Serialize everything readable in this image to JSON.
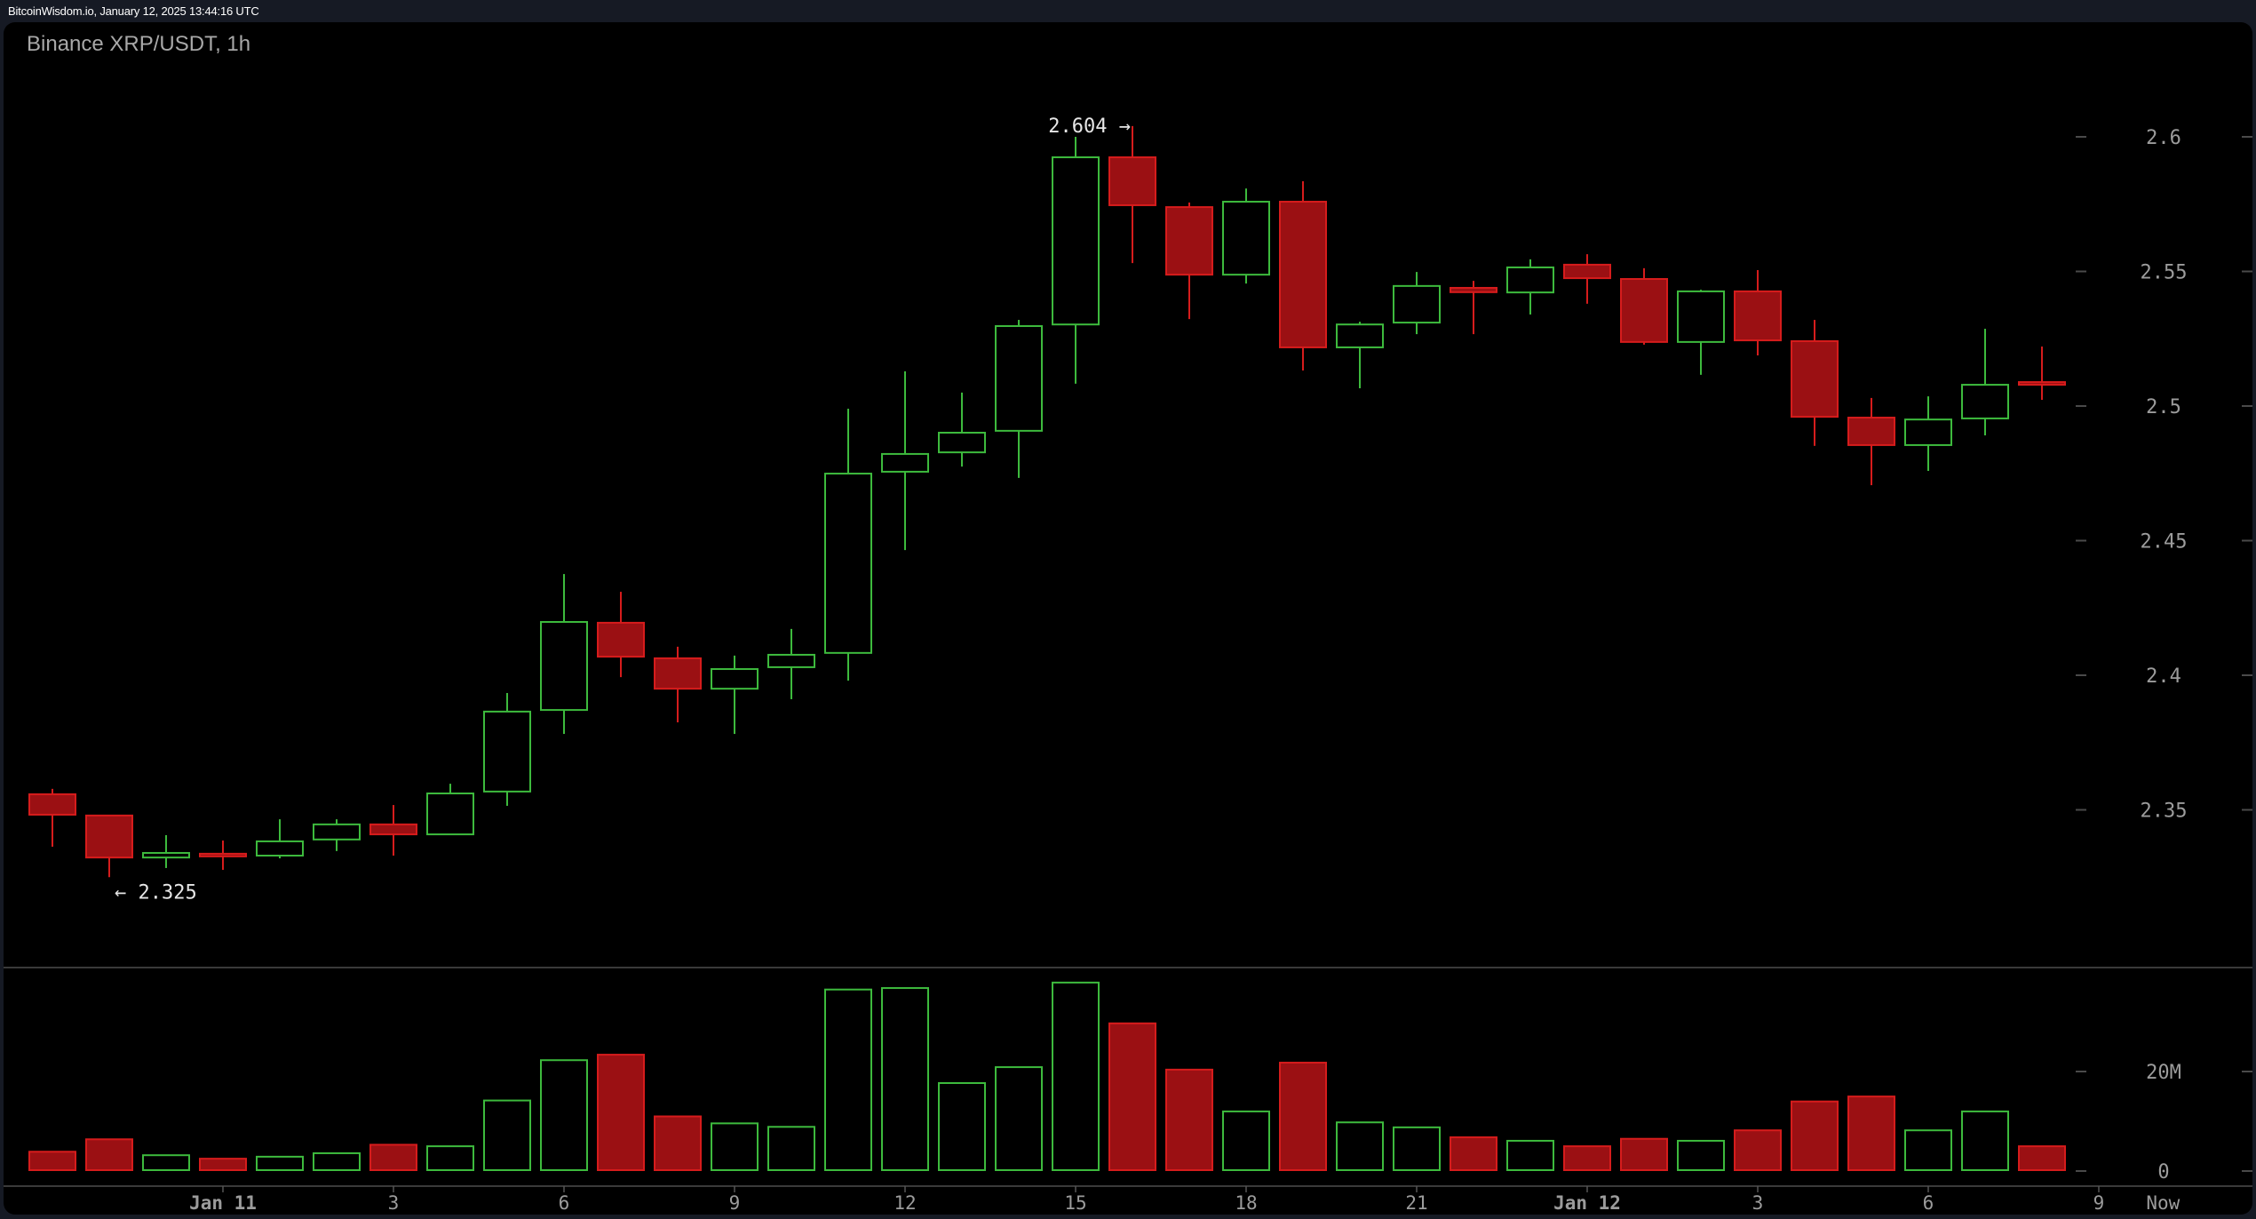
{
  "header": {
    "timestamp": "BitcoinWisdom.io, January 12, 2025 13:44:16 UTC"
  },
  "chart": {
    "title": "Binance XRP/USDT, 1h",
    "colors": {
      "background": "#000000",
      "page_background": "#161a24",
      "up": "#3dba3d",
      "down_fill": "#9b1013",
      "down_border": "#d61c1c",
      "grid_line": "#3a3a3a",
      "tick": "#4a4a4a",
      "label": "#9c9c9c"
    },
    "annotations": {
      "high": "2.604 →",
      "low": "← 2.325"
    }
  },
  "chart_data": {
    "type": "candlestick",
    "title": "Binance XRP/USDT, 1h",
    "source": "BitcoinWisdom.io, January 12, 2025 13:44:16 UTC",
    "xlabel": "",
    "ylabel": "",
    "price_axis": {
      "ticks": [
        2.35,
        2.4,
        2.45,
        2.5,
        2.55,
        2.6
      ],
      "tick_labels": [
        "2.35",
        "2.4",
        "2.45",
        "2.5",
        "2.55",
        "2.6"
      ]
    },
    "volume_axis": {
      "ticks": [
        0,
        20
      ],
      "tick_labels": [
        "0",
        "20M"
      ],
      "unit": "M"
    },
    "time_axis": {
      "labels": [
        {
          "label": "Jan 11",
          "index": 3,
          "bold": true
        },
        {
          "label": "3",
          "index": 6
        },
        {
          "label": "6",
          "index": 9
        },
        {
          "label": "9",
          "index": 12
        },
        {
          "label": "12",
          "index": 15
        },
        {
          "label": "15",
          "index": 18
        },
        {
          "label": "18",
          "index": 21
        },
        {
          "label": "21",
          "index": 24
        },
        {
          "label": "Jan 12",
          "index": 27,
          "bold": true
        },
        {
          "label": "3",
          "index": 30
        },
        {
          "label": "6",
          "index": 33
        },
        {
          "label": "9",
          "index": 36
        },
        {
          "label": "Now",
          "index": 37.13,
          "no_tick": true
        }
      ]
    },
    "annotations": [
      {
        "text": "2.604 →",
        "price": 2.604,
        "index": 19
      },
      {
        "text": "← 2.325",
        "price": 2.325,
        "index": 1
      }
    ],
    "candles": [
      {
        "t": "Jan 10 21:00",
        "o": 2.3558,
        "h": 2.3578,
        "l": 2.3363,
        "c": 2.3482,
        "v": 3.7
      },
      {
        "t": "Jan 10 22:00",
        "o": 2.3479,
        "h": 2.3479,
        "l": 2.325,
        "c": 2.3323,
        "v": 6.2
      },
      {
        "t": "Jan 10 23:00",
        "o": 2.3323,
        "h": 2.3406,
        "l": 2.3284,
        "c": 2.334,
        "v": 3.0
      },
      {
        "t": "Jan 11 00:00",
        "o": 2.3337,
        "h": 2.3386,
        "l": 2.3277,
        "c": 2.333,
        "v": 2.3
      },
      {
        "t": "Jan 11 01:00",
        "o": 2.333,
        "h": 2.3465,
        "l": 2.332,
        "c": 2.3383,
        "v": 2.7
      },
      {
        "t": "Jan 11 02:00",
        "o": 2.339,
        "h": 2.3465,
        "l": 2.3347,
        "c": 2.3446,
        "v": 3.4
      },
      {
        "t": "Jan 11 03:00",
        "o": 2.3446,
        "h": 2.3518,
        "l": 2.333,
        "c": 2.3409,
        "v": 5.1
      },
      {
        "t": "Jan 11 04:00",
        "o": 2.3409,
        "h": 2.3597,
        "l": 2.3409,
        "c": 2.3561,
        "v": 4.8
      },
      {
        "t": "Jan 11 05:00",
        "o": 2.3568,
        "h": 2.3934,
        "l": 2.3515,
        "c": 2.3865,
        "v": 14.0
      },
      {
        "t": "Jan 11 06:00",
        "o": 2.3871,
        "h": 2.4376,
        "l": 2.3782,
        "c": 2.4198,
        "v": 22.1
      },
      {
        "t": "Jan 11 07:00",
        "o": 2.4195,
        "h": 2.431,
        "l": 2.3993,
        "c": 2.4069,
        "v": 23.2
      },
      {
        "t": "Jan 11 08:00",
        "o": 2.4063,
        "h": 2.4106,
        "l": 2.3825,
        "c": 2.395,
        "v": 10.8
      },
      {
        "t": "Jan 11 09:00",
        "o": 2.395,
        "h": 2.4073,
        "l": 2.3782,
        "c": 2.4023,
        "v": 9.4
      },
      {
        "t": "Jan 11 10:00",
        "o": 2.403,
        "h": 2.4172,
        "l": 2.3911,
        "c": 2.4076,
        "v": 8.7
      },
      {
        "t": "Jan 11 11:00",
        "o": 2.4083,
        "h": 2.499,
        "l": 2.398,
        "c": 2.4749,
        "v": 36.3
      },
      {
        "t": "Jan 11 12:00",
        "o": 2.4756,
        "h": 2.5129,
        "l": 2.4465,
        "c": 2.4822,
        "v": 36.6
      },
      {
        "t": "Jan 11 13:00",
        "o": 2.4828,
        "h": 2.505,
        "l": 2.4775,
        "c": 2.4901,
        "v": 17.5
      },
      {
        "t": "Jan 11 14:00",
        "o": 2.4908,
        "h": 2.532,
        "l": 2.4733,
        "c": 2.5297,
        "v": 20.7
      },
      {
        "t": "Jan 11 15:00",
        "o": 2.5303,
        "h": 2.6,
        "l": 2.5083,
        "c": 2.5924,
        "v": 37.7
      },
      {
        "t": "Jan 11 16:00",
        "o": 2.5924,
        "h": 2.604,
        "l": 2.5531,
        "c": 2.5746,
        "v": 29.5
      },
      {
        "t": "Jan 11 17:00",
        "o": 2.5739,
        "h": 2.5756,
        "l": 2.5323,
        "c": 2.5488,
        "v": 20.2
      },
      {
        "t": "Jan 11 18:00",
        "o": 2.5488,
        "h": 2.5808,
        "l": 2.5455,
        "c": 2.5759,
        "v": 11.8
      },
      {
        "t": "Jan 11 19:00",
        "o": 2.5759,
        "h": 2.5835,
        "l": 2.5132,
        "c": 2.5218,
        "v": 21.6
      },
      {
        "t": "Jan 11 20:00",
        "o": 2.5218,
        "h": 2.5313,
        "l": 2.5066,
        "c": 2.5303,
        "v": 9.6
      },
      {
        "t": "Jan 11 21:00",
        "o": 2.531,
        "h": 2.5498,
        "l": 2.5267,
        "c": 2.5446,
        "v": 8.6
      },
      {
        "t": "Jan 11 22:00",
        "o": 2.5439,
        "h": 2.5465,
        "l": 2.5267,
        "c": 2.5423,
        "v": 6.6
      },
      {
        "t": "Jan 11 23:00",
        "o": 2.5422,
        "h": 2.5545,
        "l": 2.534,
        "c": 2.5515,
        "v": 5.9
      },
      {
        "t": "Jan 12 00:00",
        "o": 2.5525,
        "h": 2.5564,
        "l": 2.538,
        "c": 2.5475,
        "v": 4.8
      },
      {
        "t": "Jan 12 01:00",
        "o": 2.5472,
        "h": 2.5512,
        "l": 2.5228,
        "c": 2.5238,
        "v": 6.3
      },
      {
        "t": "Jan 12 02:00",
        "o": 2.5238,
        "h": 2.5432,
        "l": 2.5116,
        "c": 2.5426,
        "v": 5.9
      },
      {
        "t": "Jan 12 03:00",
        "o": 2.5426,
        "h": 2.5505,
        "l": 2.5188,
        "c": 2.5244,
        "v": 8.0
      },
      {
        "t": "Jan 12 04:00",
        "o": 2.5241,
        "h": 2.532,
        "l": 2.4852,
        "c": 2.496,
        "v": 13.8
      },
      {
        "t": "Jan 12 05:00",
        "o": 2.4957,
        "h": 2.503,
        "l": 2.4706,
        "c": 2.4855,
        "v": 14.8
      },
      {
        "t": "Jan 12 06:00",
        "o": 2.4855,
        "h": 2.5036,
        "l": 2.4759,
        "c": 2.495,
        "v": 8.0
      },
      {
        "t": "Jan 12 07:00",
        "o": 2.4954,
        "h": 2.5287,
        "l": 2.4891,
        "c": 2.5079,
        "v": 11.8
      },
      {
        "t": "Jan 12 08:00",
        "o": 2.5089,
        "h": 2.5221,
        "l": 2.5023,
        "c": 2.5079,
        "v": 4.8
      }
    ],
    "ylim": [
      2.305,
      2.62
    ],
    "grid": false,
    "legend": "none"
  }
}
